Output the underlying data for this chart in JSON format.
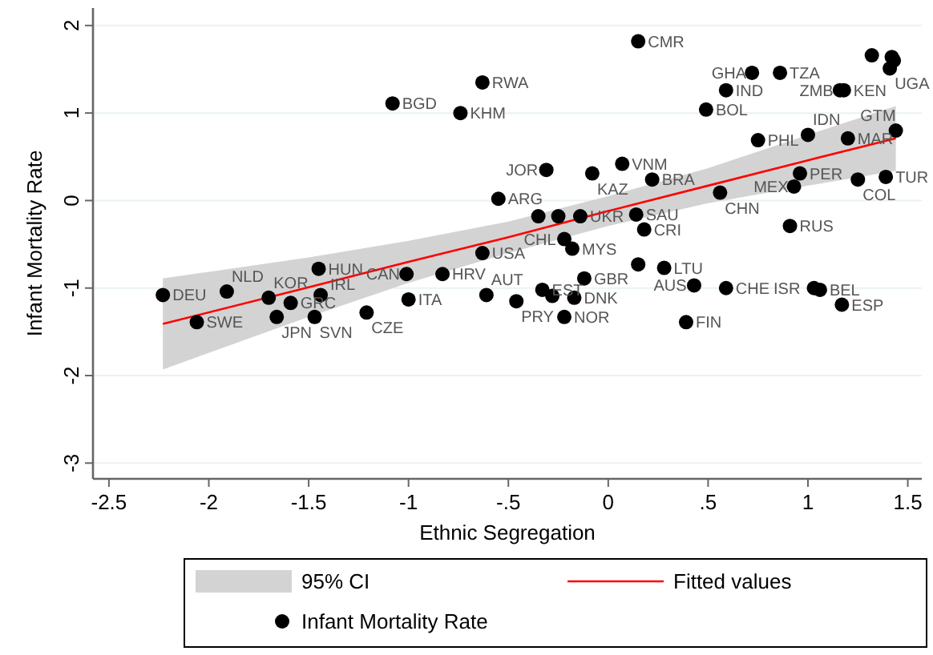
{
  "chart_data": {
    "type": "scatter",
    "xlabel": "Ethnic Segregation",
    "ylabel": "Infant Mortality Rate",
    "xlim": [
      -2.58,
      1.57
    ],
    "ylim": [
      -3.18,
      2.2
    ],
    "xticks": [
      -2.5,
      -2,
      -1.5,
      -1,
      {
        "value": -0.5,
        "label": "-.5"
      },
      0,
      {
        "value": 0.5,
        "label": ".5"
      },
      1,
      1.5
    ],
    "yticks": [
      -3,
      -2,
      -1,
      0,
      1,
      2
    ],
    "grid": "y",
    "legend": "bottom",
    "series": [
      {
        "name": "95% CI",
        "type": "area",
        "color": "#d3d3d3"
      },
      {
        "name": "Fitted values",
        "type": "line",
        "color": "#ff0000",
        "marker": "none",
        "x": [
          -2.23,
          -1.5,
          -1,
          -0.5,
          0,
          0.5,
          1,
          1.44
        ],
        "values": [
          -1.41,
          -0.99,
          -0.7,
          -0.42,
          -0.12,
          0.17,
          0.46,
          0.71
        ],
        "lower": [
          -1.93,
          -1.33,
          -0.94,
          -0.6,
          -0.29,
          -0.03,
          0.17,
          0.34
        ],
        "upper": [
          -0.89,
          -0.65,
          -0.46,
          -0.24,
          0.05,
          0.37,
          0.75,
          1.08
        ]
      },
      {
        "name": "Infant Mortality Rate",
        "marker": "circle",
        "color": "#000000",
        "x": [
          0.15,
          -0.63,
          -1.08,
          -0.74,
          0.72,
          0.86,
          0.59,
          0.49,
          1.16,
          1.18,
          1.32,
          1.42,
          1.43,
          1.41,
          0.75,
          1.0,
          1.2,
          1.44,
          -0.31,
          -0.08,
          0.07,
          0.22,
          0.96,
          0.93,
          1.25,
          1.39,
          0.56,
          -0.55,
          -0.35,
          -0.25,
          -0.14,
          0.14,
          0.18,
          0.91,
          -0.22,
          -0.18,
          -0.63,
          0.15,
          0.28,
          -1.45,
          -1.01,
          -0.83,
          -0.12,
          0.43,
          0.59,
          1.03,
          1.06,
          1.17,
          -2.23,
          -1.91,
          -1.7,
          -1.59,
          -1.44,
          -1.0,
          -0.61,
          -0.33,
          -0.46,
          -0.28,
          -0.17,
          -2.06,
          -1.66,
          -1.47,
          -1.21,
          -0.22,
          0.39
        ],
        "values": [
          1.82,
          1.35,
          1.11,
          1.0,
          1.46,
          1.46,
          1.26,
          1.04,
          1.26,
          1.26,
          1.66,
          1.64,
          1.6,
          1.51,
          0.69,
          0.75,
          0.71,
          0.8,
          0.35,
          0.31,
          0.42,
          0.24,
          0.31,
          0.16,
          0.24,
          0.27,
          0.09,
          0.02,
          -0.18,
          -0.18,
          -0.18,
          -0.16,
          -0.33,
          -0.29,
          -0.44,
          -0.55,
          -0.6,
          -0.73,
          -0.77,
          -0.78,
          -0.84,
          -0.84,
          -0.89,
          -0.97,
          -1.0,
          -1.0,
          -1.02,
          -1.19,
          -1.08,
          -1.04,
          -1.11,
          -1.17,
          -1.08,
          -1.13,
          -1.08,
          -1.02,
          -1.15,
          -1.09,
          -1.11,
          -1.39,
          -1.33,
          -1.33,
          -1.28,
          -1.33,
          -1.39
        ],
        "value_labels": [
          "CMR",
          "RWA",
          "BGD",
          "KHM",
          "GHA",
          "TZA",
          "IND",
          "BOL",
          "ZMB",
          "KEN",
          null,
          null,
          null,
          "UGA",
          "PHL",
          "IDN",
          "MAR",
          "GTM",
          "JOR",
          "KAZ",
          "VNM",
          "BRA",
          "PER",
          "MEX",
          "COL",
          "TUR",
          "CHN",
          "ARG",
          null,
          null,
          "UKR",
          "SAU",
          "CRI",
          "RUS",
          "CHL",
          "MYS",
          "USA",
          null,
          "LTU",
          "HUN",
          "CAN",
          "HRV",
          "GBR",
          "AUS",
          "CHE",
          "ISR",
          "BEL",
          "ESP",
          "DEU",
          "NLD",
          "KOR",
          "GRC",
          "IRL",
          "ITA",
          "AUT",
          "EST",
          "PRY",
          null,
          "DNK",
          "SWE",
          "JPN",
          "SVN",
          "CZE",
          "NOR",
          "FIN"
        ]
      }
    ]
  }
}
